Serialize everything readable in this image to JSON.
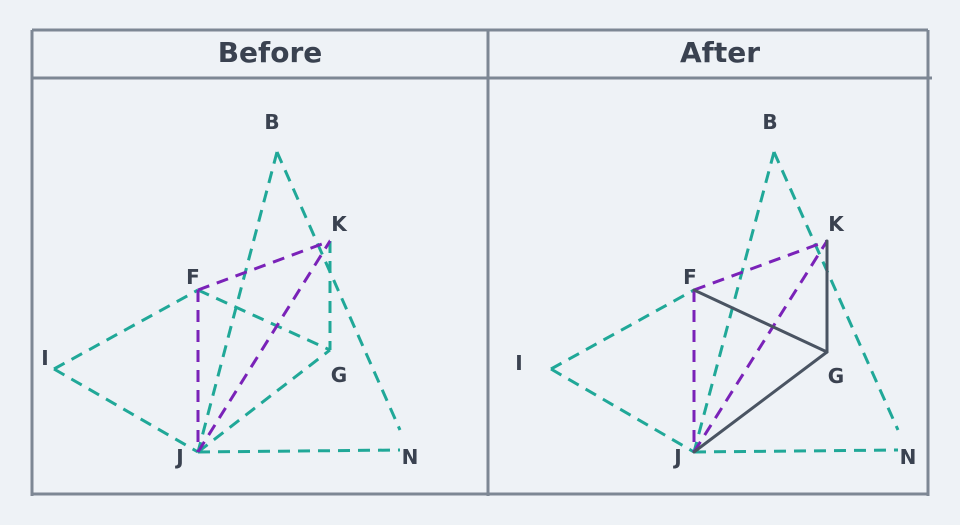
{
  "panels": {
    "before": {
      "title": "Before"
    },
    "after": {
      "title": "After"
    }
  },
  "labels": {
    "B": "B",
    "K": "K",
    "F": "F",
    "I": "I",
    "G": "G",
    "J": "J",
    "N": "N"
  },
  "colors": {
    "background": "#eef2f6",
    "frame": "#7d8794",
    "teal_dashed": "#20a898",
    "purple_dashed": "#7a22b8",
    "solid_added": "#4a5462",
    "text": "#3a4250"
  }
}
